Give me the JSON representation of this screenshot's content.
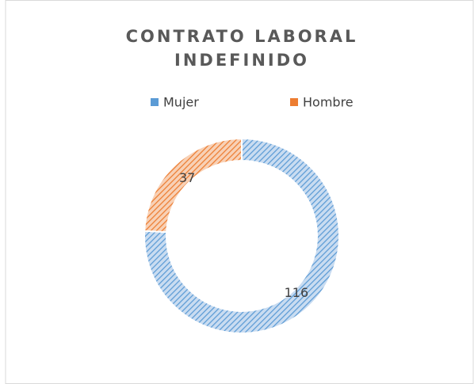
{
  "chart_data": {
    "type": "donut",
    "title": [
      "CONTRATO LABORAL",
      "INDEFINIDO"
    ],
    "categories": [
      "Mujer",
      "Hombre"
    ],
    "values": [
      116,
      37
    ],
    "colors": [
      "#5b9bd5",
      "#ed7d31"
    ],
    "legend": "top"
  }
}
